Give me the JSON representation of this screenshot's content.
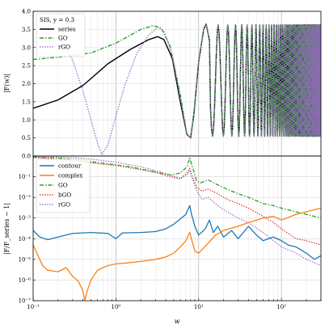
{
  "chart_data": [
    {
      "type": "line",
      "panel": "top",
      "annotation": "SIS, y = 0.3",
      "ylabel": "|F(w)|",
      "xlabel": "",
      "xscale": "log",
      "xlim": [
        0.1,
        300
      ],
      "ylim": [
        0.0,
        4.0
      ],
      "yticks": [
        "0.0",
        "0.5",
        "1.0",
        "1.5",
        "2.0",
        "2.5",
        "3.0",
        "3.5",
        "4.0"
      ],
      "yticks_values": [
        0.0,
        0.5,
        1.0,
        1.5,
        2.0,
        2.5,
        3.0,
        3.5,
        4.0
      ],
      "grid": true,
      "legend_position": "top-left",
      "series": [
        {
          "name": "series",
          "color": "#000000",
          "style": "solid",
          "points": [
            [
              0.1,
              1.32
            ],
            [
              0.2,
              1.55
            ],
            [
              0.4,
              1.95
            ],
            [
              0.8,
              2.55
            ],
            [
              1.5,
              2.95
            ],
            [
              2.5,
              3.22
            ],
            [
              3.2,
              3.3
            ],
            [
              3.8,
              3.22
            ],
            [
              4.8,
              2.7
            ],
            [
              6.0,
              1.5
            ],
            [
              7.2,
              0.6
            ],
            [
              8.0,
              0.5
            ],
            [
              8.8,
              1.2
            ],
            [
              10.0,
              2.6
            ],
            [
              11.5,
              3.5
            ],
            [
              12.3,
              3.65
            ],
            [
              13.5,
              3.2
            ]
          ]
        },
        {
          "name": "GO",
          "color": "#2ca02c",
          "style": "dashdot",
          "points": [
            [
              0.1,
              2.67
            ],
            [
              0.2,
              2.73
            ],
            [
              0.5,
              2.85
            ],
            [
              1.0,
              3.12
            ],
            [
              2.0,
              3.5
            ],
            [
              2.8,
              3.6
            ],
            [
              3.5,
              3.55
            ],
            [
              4.5,
              3.05
            ],
            [
              6.0,
              1.7
            ],
            [
              7.2,
              0.6
            ],
            [
              8.0,
              0.5
            ],
            [
              8.8,
              1.2
            ],
            [
              10.0,
              2.6
            ],
            [
              11.5,
              3.5
            ],
            [
              12.3,
              3.65
            ],
            [
              13.5,
              3.2
            ]
          ]
        },
        {
          "name": "rGO",
          "color": "#9467bd",
          "style": "dotted",
          "points": [
            [
              0.2,
              3.35
            ],
            [
              0.3,
              2.65
            ],
            [
              0.4,
              1.8
            ],
            [
              0.5,
              1.0
            ],
            [
              0.6,
              0.35
            ],
            [
              0.68,
              0.05
            ],
            [
              0.8,
              0.3
            ],
            [
              1.0,
              1.1
            ],
            [
              1.3,
              2.0
            ],
            [
              1.8,
              2.85
            ],
            [
              2.5,
              3.35
            ],
            [
              3.2,
              3.55
            ],
            [
              3.8,
              3.45
            ],
            [
              4.8,
              2.8
            ],
            [
              6.0,
              1.6
            ],
            [
              7.2,
              0.6
            ],
            [
              8.0,
              0.5
            ],
            [
              8.8,
              1.2
            ],
            [
              10.0,
              2.6
            ],
            [
              11.5,
              3.5
            ],
            [
              12.3,
              3.65
            ],
            [
              13.5,
              3.2
            ]
          ]
        }
      ],
      "oscillation": {
        "x_start": 13.5,
        "x_end": 300,
        "peak_x": [
          12.3,
          17.2,
          22.5,
          27.9,
          33.2,
          38.5,
          44.0,
          49.3,
          54.7,
          60.0,
          65.4,
          70.8,
          76.1,
          81.5,
          86.8,
          92.2
        ],
        "trough_x": [
          14.7,
          19.9,
          25.2,
          30.5,
          35.9,
          41.2,
          46.6,
          52.0,
          57.3,
          62.7,
          68.1,
          73.4,
          78.8,
          84.2,
          89.5,
          94.9
        ],
        "max": 3.62,
        "min": 0.55
      }
    },
    {
      "type": "line",
      "panel": "bottom",
      "ylabel": "|F/F_series − 1|",
      "xlabel": "w",
      "xscale": "log",
      "yscale": "log",
      "xlim": [
        0.1,
        300
      ],
      "ylim": [
        1e-07,
        1
      ],
      "xticks": [
        "10^-1",
        "10^0",
        "10^1",
        "10^2"
      ],
      "xticks_values": [
        0.1,
        1,
        10,
        100
      ],
      "yticks": [
        "10^-7",
        "10^-6",
        "10^-5",
        "10^-4",
        "10^-3",
        "10^-2",
        "10^-1"
      ],
      "yticks_values": [
        1e-07,
        1e-06,
        1e-05,
        0.0001,
        0.001,
        0.01,
        0.1
      ],
      "grid": true,
      "legend_position": "top-left",
      "series": [
        {
          "name": "contour",
          "color": "#1f77b4",
          "style": "solid",
          "points": [
            [
              0.1,
              0.00025
            ],
            [
              0.12,
              0.00012
            ],
            [
              0.15,
              9e-05
            ],
            [
              0.2,
              0.00012
            ],
            [
              0.3,
              0.00018
            ],
            [
              0.5,
              0.0002
            ],
            [
              0.8,
              0.00018
            ],
            [
              1.0,
              0.0001
            ],
            [
              1.2,
              0.00019
            ],
            [
              2.0,
              0.0002
            ],
            [
              3.0,
              0.00022
            ],
            [
              4.0,
              0.0003
            ],
            [
              5.0,
              0.0005
            ],
            [
              6.0,
              0.0009
            ],
            [
              7.0,
              0.0015
            ],
            [
              7.8,
              0.004
            ],
            [
              8.2,
              0.0015
            ],
            [
              9.0,
              0.0004
            ],
            [
              10.0,
              0.00015
            ],
            [
              12.0,
              0.0003
            ],
            [
              13.5,
              0.0008
            ],
            [
              15.0,
              0.0002
            ],
            [
              17.0,
              0.0004
            ],
            [
              20.0,
              0.00012
            ],
            [
              25.0,
              0.00025
            ],
            [
              30.0,
              0.0001
            ],
            [
              40.0,
              0.0004
            ],
            [
              50.0,
              0.00015
            ],
            [
              60.0,
              8e-05
            ],
            [
              80.0,
              0.00012
            ],
            [
              100.0,
              8e-05
            ],
            [
              120.0,
              5e-05
            ],
            [
              150.0,
              4e-05
            ],
            [
              200.0,
              2e-05
            ],
            [
              250.0,
              1e-05
            ],
            [
              300.0,
              1.5e-05
            ]
          ]
        },
        {
          "name": "complex",
          "color": "#ff7f0e",
          "style": "solid",
          "points": [
            [
              0.1,
              5e-05
            ],
            [
              0.13,
              5e-06
            ],
            [
              0.15,
              3e-06
            ],
            [
              0.2,
              2.5e-06
            ],
            [
              0.25,
              4e-06
            ],
            [
              0.3,
              1.5e-06
            ],
            [
              0.35,
              9e-07
            ],
            [
              0.4,
              3e-07
            ],
            [
              0.42,
              1e-07
            ],
            [
              0.45,
              3e-07
            ],
            [
              0.5,
              1e-06
            ],
            [
              0.6,
              3e-06
            ],
            [
              0.7,
              4e-06
            ],
            [
              0.8,
              5e-06
            ],
            [
              1.0,
              6e-06
            ],
            [
              1.5,
              7e-06
            ],
            [
              2.0,
              8e-06
            ],
            [
              3.0,
              1e-05
            ],
            [
              4.0,
              1.3e-05
            ],
            [
              5.0,
              2e-05
            ],
            [
              6.0,
              4e-05
            ],
            [
              7.0,
              8e-05
            ],
            [
              7.8,
              0.0002
            ],
            [
              8.3,
              8e-05
            ],
            [
              9.0,
              2.5e-05
            ],
            [
              10.0,
              2e-05
            ],
            [
              13.0,
              6e-05
            ],
            [
              16.0,
              0.00015
            ],
            [
              20.0,
              0.00025
            ],
            [
              30.0,
              0.0004
            ],
            [
              40.0,
              0.0006
            ],
            [
              60.0,
              0.001
            ],
            [
              80.0,
              0.0012
            ],
            [
              100.0,
              0.0008
            ],
            [
              150.0,
              0.0015
            ],
            [
              200.0,
              0.002
            ],
            [
              300.0,
              0.003
            ]
          ]
        },
        {
          "name": "GO",
          "color": "#2ca02c",
          "style": "dashdot",
          "points": [
            [
              0.1,
              0.9
            ],
            [
              0.2,
              0.8
            ],
            [
              0.4,
              0.6
            ],
            [
              0.8,
              0.42
            ],
            [
              1.5,
              0.3
            ],
            [
              3.0,
              0.17
            ],
            [
              4.5,
              0.12
            ],
            [
              6.0,
              0.15
            ],
            [
              7.2,
              0.3
            ],
            [
              7.8,
              0.8
            ],
            [
              8.4,
              0.3
            ],
            [
              9.5,
              0.06
            ],
            [
              10.5,
              0.05
            ],
            [
              13.0,
              0.07
            ],
            [
              17.0,
              0.04
            ],
            [
              22.0,
              0.025
            ],
            [
              30.0,
              0.015
            ],
            [
              40.0,
              0.01
            ],
            [
              60.0,
              0.005
            ],
            [
              80.0,
              0.004
            ],
            [
              100.0,
              0.003
            ],
            [
              150.0,
              0.002
            ],
            [
              200.0,
              0.0015
            ],
            [
              300.0,
              0.001
            ]
          ]
        },
        {
          "name": "bGO",
          "color": "#d62728",
          "style": "dotted",
          "points": [
            [
              0.1,
              0.85
            ],
            [
              0.3,
              0.6
            ],
            [
              0.6,
              0.43
            ],
            [
              1.0,
              0.35
            ],
            [
              2.0,
              0.22
            ],
            [
              3.0,
              0.16
            ],
            [
              4.5,
              0.1
            ],
            [
              6.0,
              0.08
            ],
            [
              7.2,
              0.15
            ],
            [
              7.8,
              0.25
            ],
            [
              8.4,
              0.1
            ],
            [
              9.5,
              0.03
            ],
            [
              11.0,
              0.02
            ],
            [
              13.0,
              0.025
            ],
            [
              17.0,
              0.015
            ],
            [
              22.0,
              0.008
            ],
            [
              30.0,
              0.005
            ],
            [
              40.0,
              0.003
            ],
            [
              60.0,
              0.0012
            ],
            [
              80.0,
              0.0006
            ],
            [
              100.0,
              0.0003
            ],
            [
              150.0,
              0.0001
            ],
            [
              200.0,
              8e-05
            ],
            [
              300.0,
              5e-05
            ]
          ]
        },
        {
          "name": "rGO",
          "color": "#9467bd",
          "style": "dotted",
          "points": [
            [
              0.1,
              0.95
            ],
            [
              0.3,
              0.85
            ],
            [
              0.6,
              0.65
            ],
            [
              1.0,
              0.5
            ],
            [
              2.0,
              0.3
            ],
            [
              3.0,
              0.2
            ],
            [
              4.5,
              0.12
            ],
            [
              6.0,
              0.08
            ],
            [
              7.2,
              0.12
            ],
            [
              7.8,
              0.2
            ],
            [
              8.4,
              0.08
            ],
            [
              9.5,
              0.02
            ],
            [
              11.0,
              0.008
            ],
            [
              13.0,
              0.01
            ],
            [
              17.0,
              0.004
            ],
            [
              22.0,
              0.002
            ],
            [
              30.0,
              0.001
            ],
            [
              40.0,
              0.0006
            ],
            [
              60.0,
              0.0002
            ],
            [
              80.0,
              8e-05
            ],
            [
              100.0,
              4e-05
            ],
            [
              150.0,
              2e-05
            ],
            [
              200.0,
              1e-05
            ],
            [
              300.0,
              5e-06
            ]
          ]
        }
      ]
    }
  ]
}
